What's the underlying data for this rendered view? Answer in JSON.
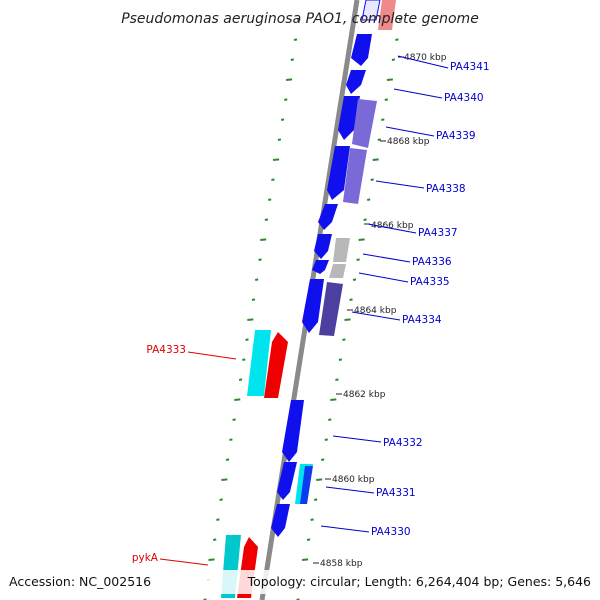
{
  "title": "Pseudomonas aeruginosa PAO1, complete genome",
  "accession": "Accession: NC_002516",
  "topology": "Topology: circular; Length: 6,264,404 bp; Genes: 5,646",
  "colors": {
    "backbone": "#8a8a8a",
    "gc_dots": "#2f8a2f",
    "forward_label": "#0000cc",
    "reverse_label": "#dd0000",
    "cds_blue": "#1010ee",
    "cds_purple": "#7a6ad8",
    "cds_darkpurple": "#4b3fa0",
    "cds_gray": "#b8b8b8",
    "cds_cyan": "#00e4ee",
    "cds_red": "#ee0000",
    "cds_pink": "#ee8a8a"
  },
  "ticks": [
    {
      "label": "4870 kbp"
    },
    {
      "label": "4868 kbp"
    },
    {
      "label": "4866 kbp"
    },
    {
      "label": "4864 kbp"
    },
    {
      "label": "4862 kbp"
    },
    {
      "label": "4860 kbp"
    },
    {
      "label": "4858 kbp"
    }
  ],
  "genes": [
    {
      "name": "PA4341",
      "strand": "forward"
    },
    {
      "name": "PA4340",
      "strand": "forward"
    },
    {
      "name": "PA4339",
      "strand": "forward"
    },
    {
      "name": "PA4338",
      "strand": "forward"
    },
    {
      "name": "PA4337",
      "strand": "forward"
    },
    {
      "name": "PA4336",
      "strand": "forward"
    },
    {
      "name": "PA4335",
      "strand": "forward"
    },
    {
      "name": "PA4334",
      "strand": "forward"
    },
    {
      "name": "PA4333",
      "strand": "reverse"
    },
    {
      "name": "PA4332",
      "strand": "forward"
    },
    {
      "name": "PA4331",
      "strand": "forward"
    },
    {
      "name": "PA4330",
      "strand": "forward"
    },
    {
      "name": "pykA",
      "strand": "reverse"
    }
  ]
}
